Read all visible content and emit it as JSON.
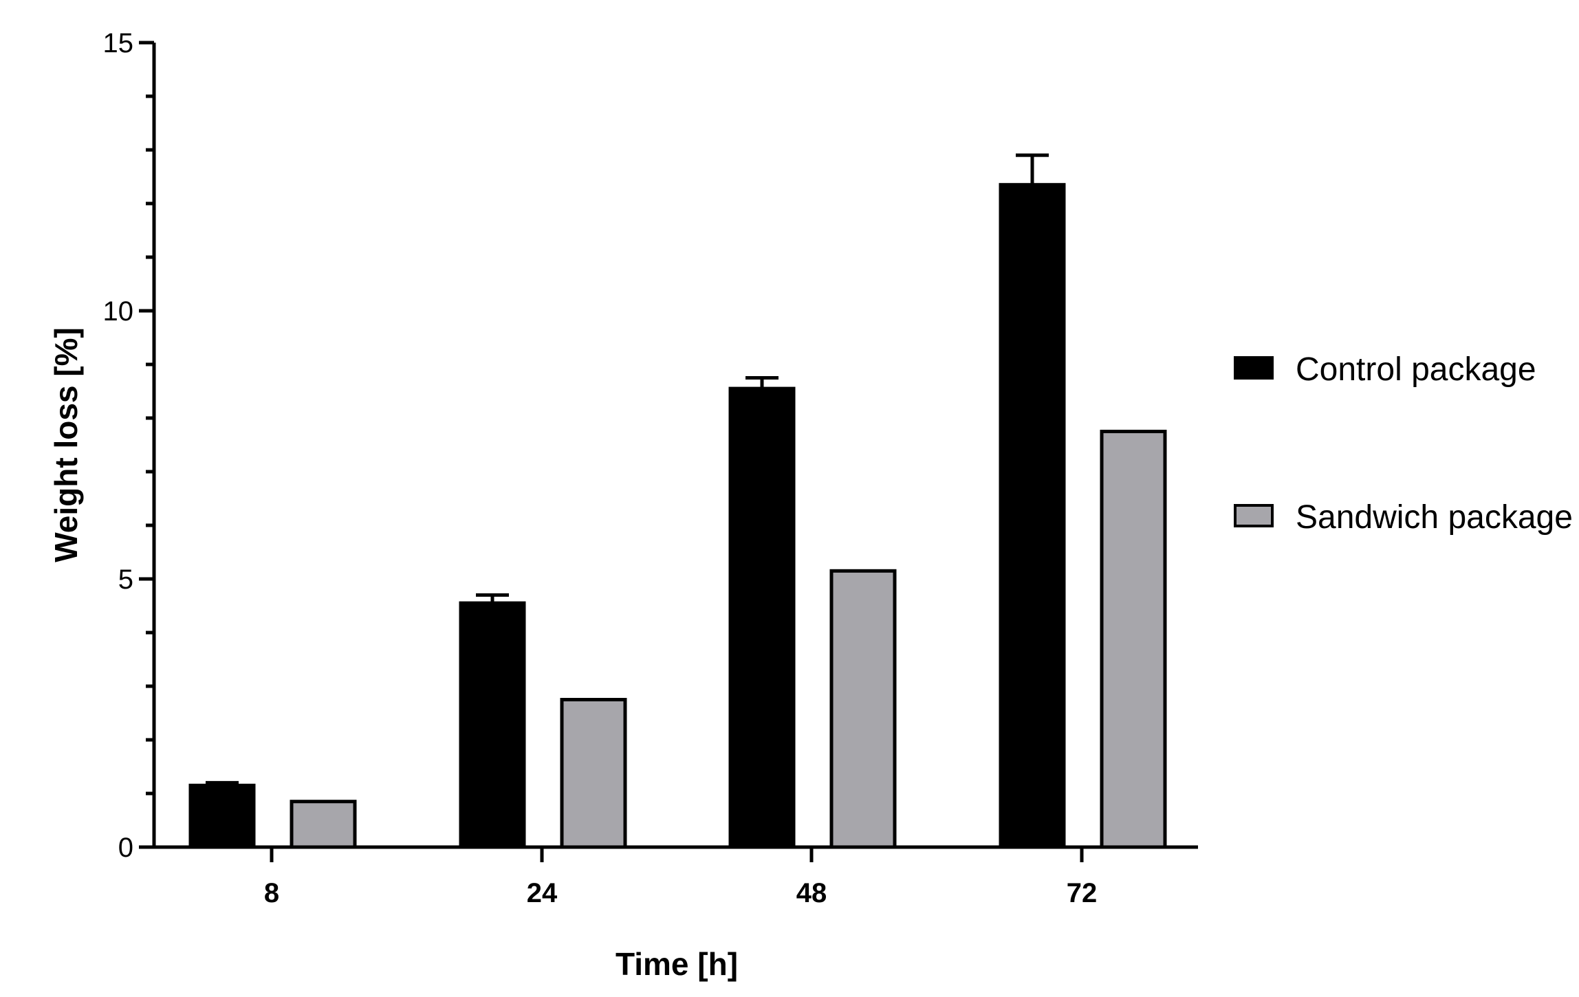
{
  "chart_data": {
    "type": "bar",
    "categories": [
      "8",
      "24",
      "48",
      "72"
    ],
    "series": [
      {
        "name": "Control package",
        "values": [
          1.15,
          4.55,
          8.55,
          12.35
        ],
        "errors": [
          0.05,
          0.15,
          0.2,
          0.55
        ],
        "color": "#000000"
      },
      {
        "name": "Sandwich package",
        "values": [
          0.85,
          2.75,
          5.15,
          7.75
        ],
        "errors": [
          0,
          0,
          0,
          0
        ],
        "color": "#a7a6ab"
      }
    ],
    "title": "",
    "xlabel": "Time [h]",
    "ylabel": "Weight loss [%]",
    "ylim": [
      0,
      15
    ],
    "yticks": [
      "0",
      "5",
      "10",
      "15"
    ],
    "grid": false,
    "legend_position": "right"
  }
}
